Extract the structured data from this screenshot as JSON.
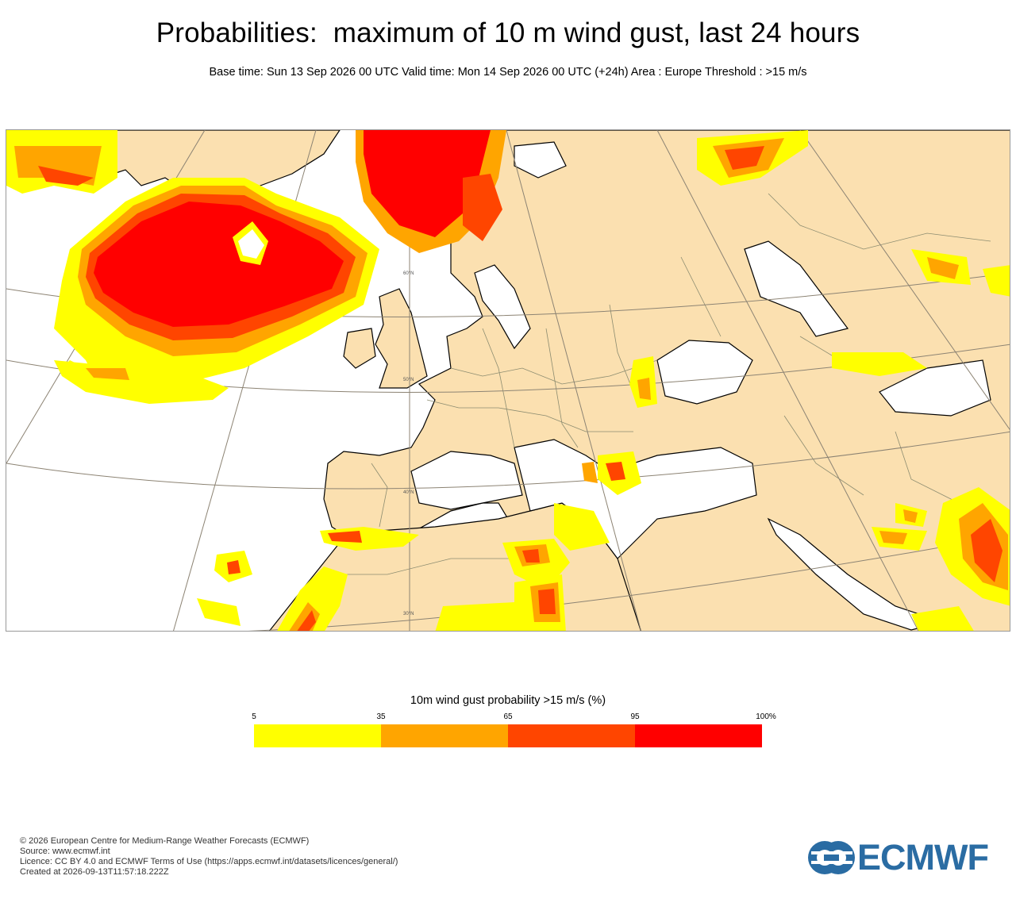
{
  "title": "Probabilities:  maximum of 10 m wind gust, last 24 hours",
  "subtitle": "Base time: Sun 13 Sep 2026 00 UTC Valid time: Mon 14 Sep 2026 00 UTC (+24h) Area : Europe Threshold : >15 m/s",
  "map": {
    "area": "Europe",
    "latitude_labels": [
      "60°N",
      "50°N",
      "40°N",
      "30°N"
    ],
    "colors": {
      "land": "#fbe0b0",
      "sea": "#ffffff",
      "coast": "#000000",
      "border": "#8c8c70",
      "graticule": "#8c8373"
    }
  },
  "legend": {
    "title": "10m wind gust probability >15 m/s (%)",
    "ticks": [
      "5",
      "35",
      "65",
      "95",
      "100%"
    ],
    "bins": [
      {
        "from": 5,
        "to": 35,
        "color": "#ffff00"
      },
      {
        "from": 35,
        "to": 65,
        "color": "#ffa500"
      },
      {
        "from": 65,
        "to": 95,
        "color": "#ff4500"
      },
      {
        "from": 95,
        "to": 100,
        "color": "#ff0000"
      }
    ]
  },
  "footer": {
    "line1": "© 2026 European Centre for Medium-Range Weather Forecasts (ECMWF)",
    "line2": "Source: www.ecmwf.int",
    "line3": "Licence: CC BY 4.0 and ECMWF Terms of Use (https://apps.ecmwf.int/datasets/licences/general/)",
    "line4": "Created at 2026-09-13T11:57:18.222Z"
  },
  "logo": {
    "text": "ECMWF",
    "color": "#2a6ca3"
  }
}
